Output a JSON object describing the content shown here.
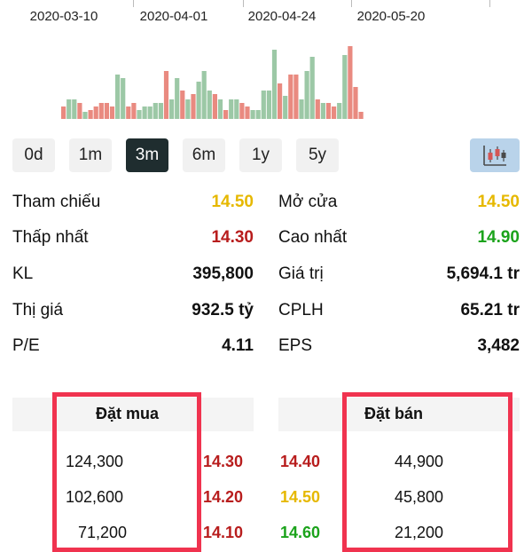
{
  "timeline": {
    "dates": [
      "2020-03-10",
      "2020-04-01",
      "2020-04-24",
      "2020-05-20"
    ]
  },
  "volume_chart": {
    "colors": {
      "up": "#9cc8a6",
      "down": "#e98a80"
    },
    "bars": [
      {
        "v": 0.14,
        "d": "down"
      },
      {
        "v": 0.22,
        "d": "up"
      },
      {
        "v": 0.22,
        "d": "up"
      },
      {
        "v": 0.18,
        "d": "down"
      },
      {
        "v": 0.08,
        "d": "up"
      },
      {
        "v": 0.1,
        "d": "down"
      },
      {
        "v": 0.14,
        "d": "down"
      },
      {
        "v": 0.18,
        "d": "down"
      },
      {
        "v": 0.18,
        "d": "down"
      },
      {
        "v": 0.14,
        "d": "down"
      },
      {
        "v": 0.5,
        "d": "up"
      },
      {
        "v": 0.46,
        "d": "up"
      },
      {
        "v": 0.14,
        "d": "down"
      },
      {
        "v": 0.18,
        "d": "down"
      },
      {
        "v": 0.1,
        "d": "up"
      },
      {
        "v": 0.14,
        "d": "up"
      },
      {
        "v": 0.14,
        "d": "up"
      },
      {
        "v": 0.18,
        "d": "up"
      },
      {
        "v": 0.18,
        "d": "up"
      },
      {
        "v": 0.54,
        "d": "down"
      },
      {
        "v": 0.22,
        "d": "up"
      },
      {
        "v": 0.46,
        "d": "up"
      },
      {
        "v": 0.32,
        "d": "down"
      },
      {
        "v": 0.22,
        "d": "up"
      },
      {
        "v": 0.28,
        "d": "down"
      },
      {
        "v": 0.42,
        "d": "up"
      },
      {
        "v": 0.54,
        "d": "up"
      },
      {
        "v": 0.32,
        "d": "up"
      },
      {
        "v": 0.28,
        "d": "down"
      },
      {
        "v": 0.22,
        "d": "up"
      },
      {
        "v": 0.1,
        "d": "down"
      },
      {
        "v": 0.22,
        "d": "up"
      },
      {
        "v": 0.22,
        "d": "up"
      },
      {
        "v": 0.18,
        "d": "down"
      },
      {
        "v": 0.14,
        "d": "down"
      },
      {
        "v": 0.1,
        "d": "up"
      },
      {
        "v": 0.1,
        "d": "up"
      },
      {
        "v": 0.32,
        "d": "up"
      },
      {
        "v": 0.32,
        "d": "up"
      },
      {
        "v": 0.78,
        "d": "up"
      },
      {
        "v": 0.4,
        "d": "down"
      },
      {
        "v": 0.26,
        "d": "up"
      },
      {
        "v": 0.5,
        "d": "down"
      },
      {
        "v": 0.5,
        "d": "down"
      },
      {
        "v": 0.22,
        "d": "up"
      },
      {
        "v": 0.54,
        "d": "up"
      },
      {
        "v": 0.7,
        "d": "up"
      },
      {
        "v": 0.22,
        "d": "down"
      },
      {
        "v": 0.18,
        "d": "up"
      },
      {
        "v": 0.18,
        "d": "down"
      },
      {
        "v": 0.14,
        "d": "down"
      },
      {
        "v": 0.18,
        "d": "up"
      },
      {
        "v": 0.72,
        "d": "up"
      },
      {
        "v": 0.82,
        "d": "down"
      },
      {
        "v": 0.36,
        "d": "down"
      },
      {
        "v": 0.08,
        "d": "down"
      }
    ]
  },
  "range": {
    "buttons": [
      "0d",
      "1m",
      "3m",
      "6m",
      "1y",
      "5y"
    ],
    "active": "3m",
    "chart_type_icon": "candlestick-icon"
  },
  "colors": {
    "reference": "#e6b800",
    "down": "#b81d1d",
    "up": "#1ba31b",
    "neutral": "#111111",
    "highlight": "#f0334f"
  },
  "stats": {
    "reference_label": "Tham chiếu",
    "reference_value": "14.50",
    "open_label": "Mở cửa",
    "open_value": "14.50",
    "low_label": "Thấp nhất",
    "low_value": "14.30",
    "high_label": "Cao nhất",
    "high_value": "14.90",
    "volume_label": "KL",
    "volume_value": "395,800",
    "turnover_label": "Giá trị",
    "turnover_value": "5,694.1 tr",
    "market_cap_label": "Thị giá",
    "market_cap_value": "932.5 tỷ",
    "shares_label": "CPLH",
    "shares_value": "65.21 tr",
    "pe_label": "P/E",
    "pe_value": "4.11",
    "eps_label": "EPS",
    "eps_value": "3,482"
  },
  "order_book": {
    "bid_title": "Đặt mua",
    "ask_title": "Đặt bán",
    "bids": [
      {
        "volume": "124,300",
        "price": "14.30"
      },
      {
        "volume": "102,600",
        "price": "14.20"
      },
      {
        "volume": "71,200",
        "price": "14.10"
      }
    ],
    "asks": [
      {
        "price": "14.40",
        "volume": "44,900"
      },
      {
        "price": "14.50",
        "volume": "45,800"
      },
      {
        "price": "14.60",
        "volume": "21,200"
      }
    ]
  }
}
